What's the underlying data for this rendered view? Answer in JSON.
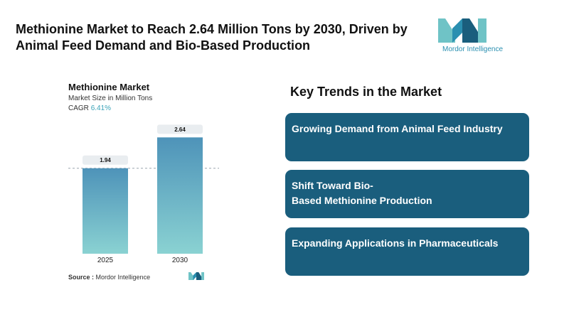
{
  "headline": "Methionine Market to Reach 2.64 Million Tons by 2030, Driven by Animal Feed Demand and Bio-Based Production",
  "brand": {
    "name": "Mordor Intelligence",
    "icon": "mordor-logo-icon",
    "colors": [
      "#2a8fb0",
      "#1a5e7d",
      "#6fc3c6"
    ]
  },
  "chart": {
    "title": "Methionine Market",
    "subtitle": "Market Size in Million Tons",
    "cagr_label": "CAGR",
    "cagr_value": "6.41%"
  },
  "chart_data": {
    "type": "bar",
    "categories": [
      "2025",
      "2030"
    ],
    "values": [
      1.94,
      2.64
    ],
    "value_labels": [
      "1.94",
      "2.64"
    ],
    "title": "Methionine Market",
    "ylabel": "Market Size in Million Tons",
    "reference_line": 1.94,
    "grid": false,
    "bar_gradient": [
      "#4e93b9",
      "#8ad2d2"
    ]
  },
  "source": {
    "label": "Source :",
    "value": "Mordor Intelligence"
  },
  "trends": {
    "title": "Key Trends in the Market",
    "items": [
      "Growing Demand from Animal Feed Industry",
      "Shift Toward Bio-\nBased Methionine Production",
      "Expanding Applications in Pharmaceuticals"
    ]
  }
}
